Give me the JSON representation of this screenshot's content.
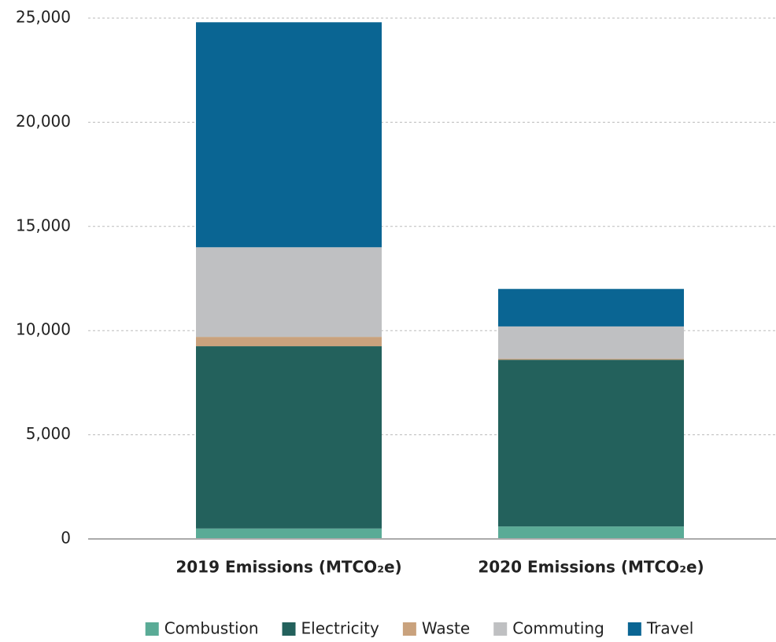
{
  "chart_data": {
    "type": "stacked_bar",
    "categories": [
      "2019 Emissions (MTCO₂e)",
      "2020 Emissions (MTCO₂e)"
    ],
    "series": [
      {
        "name": "Combustion",
        "color": "#5aab96",
        "values": [
          500,
          600
        ]
      },
      {
        "name": "Electricity",
        "color": "#23615c",
        "values": [
          8750,
          8000
        ]
      },
      {
        "name": "Waste",
        "color": "#c9a27d",
        "values": [
          450,
          50
        ]
      },
      {
        "name": "Commuting",
        "color": "#bfc0c2",
        "values": [
          4300,
          1550
        ]
      },
      {
        "name": "Travel",
        "color": "#0a6593",
        "values": [
          10800,
          1800
        ]
      }
    ],
    "ylim": [
      0,
      25000
    ],
    "yticks": [
      {
        "value": 0,
        "label": "0"
      },
      {
        "value": 5000,
        "label": "5,000"
      },
      {
        "value": 10000,
        "label": "10,000"
      },
      {
        "value": 15000,
        "label": "15,000"
      },
      {
        "value": 20000,
        "label": "20,000"
      },
      {
        "value": 25000,
        "label": "25,000"
      }
    ],
    "grid": true,
    "legend": "bottom"
  }
}
